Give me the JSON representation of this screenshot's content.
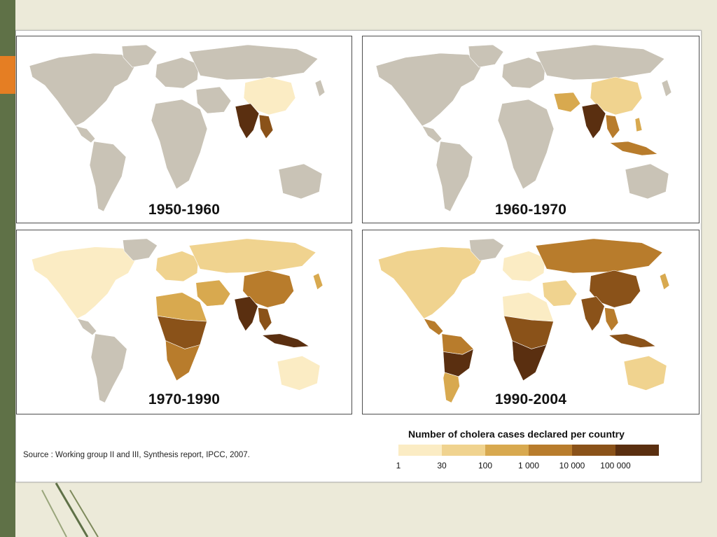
{
  "panels": [
    {
      "period": "1950-1960"
    },
    {
      "period": "1960-1970"
    },
    {
      "period": "1970-1990"
    },
    {
      "period": "1990-2004"
    }
  ],
  "legend": {
    "title": "Number of cholera cases declared per country",
    "colors": [
      "#fbecc4",
      "#f0d38f",
      "#d8a94f",
      "#b87c2c",
      "#8a5219",
      "#5a2f10"
    ],
    "ticks": [
      "1",
      "30",
      "100",
      "1 000",
      "10 000",
      "100 000"
    ]
  },
  "source": "Source : Working group II and III, Synthesis report, IPCC, 2007.",
  "colors": {
    "land_no_data": "#c9c3b6",
    "sidebar": "#5f7147",
    "accent": "#e57e23",
    "background": "#ecead9"
  }
}
